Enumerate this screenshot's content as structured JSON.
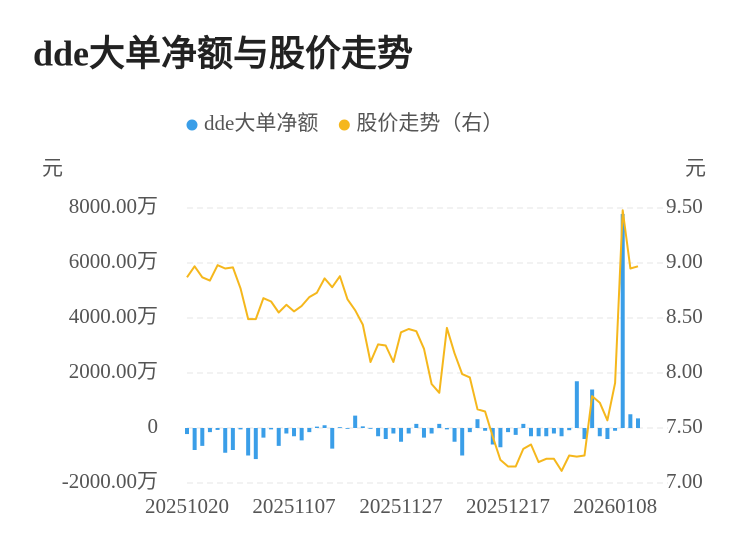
{
  "chart_data": {
    "type": "bar",
    "title": "dde大单净额与股价走势",
    "y_label": "元",
    "y2_label": "元",
    "categories": [
      "20251020",
      null,
      null,
      null,
      null,
      null,
      null,
      null,
      null,
      null,
      null,
      null,
      null,
      null,
      "20251107",
      null,
      null,
      null,
      null,
      null,
      null,
      null,
      null,
      null,
      null,
      null,
      null,
      null,
      "20251127",
      null,
      null,
      null,
      null,
      null,
      null,
      null,
      null,
      null,
      null,
      null,
      null,
      null,
      "20251217",
      null,
      null,
      null,
      null,
      null,
      null,
      null,
      null,
      null,
      null,
      null,
      null,
      null,
      "20260108",
      null,
      null,
      null
    ],
    "series": [
      {
        "name": "dde大单净额",
        "type": "bar",
        "color": "#3a9ee8",
        "values": [
          -220,
          -800,
          -650,
          -150,
          -70,
          -900,
          -800,
          -50,
          -1000,
          -1130,
          -350,
          -50,
          -650,
          -200,
          -300,
          -450,
          -150,
          50,
          100,
          -750,
          30,
          -30,
          450,
          60,
          -30,
          -300,
          -400,
          -200,
          -500,
          -200,
          150,
          -350,
          -200,
          150,
          -50,
          -500,
          -1000,
          -150,
          320,
          -100,
          -600,
          -700,
          -150,
          -250,
          150,
          -300,
          -300,
          -300,
          -200,
          -300,
          -80,
          1700,
          -400,
          1400,
          -300,
          -400,
          -100,
          7780,
          500,
          350
        ]
      },
      {
        "name": "股价走势（右）",
        "type": "line",
        "axis": "y2",
        "color": "#f5b71c",
        "values": [
          8.87,
          8.97,
          8.87,
          8.84,
          8.98,
          8.95,
          8.96,
          8.77,
          8.49,
          8.49,
          8.68,
          8.65,
          8.55,
          8.62,
          8.56,
          8.61,
          8.69,
          8.73,
          8.86,
          8.78,
          8.88,
          8.67,
          8.57,
          8.44,
          8.1,
          8.26,
          8.25,
          8.1,
          8.37,
          8.4,
          8.38,
          8.22,
          7.9,
          7.82,
          8.41,
          8.18,
          7.99,
          7.96,
          7.67,
          7.65,
          7.42,
          7.21,
          7.15,
          7.15,
          7.31,
          7.35,
          7.19,
          7.22,
          7.22,
          7.11,
          7.25,
          7.24,
          7.25,
          7.79,
          7.73,
          7.57,
          7.91,
          9.48,
          8.95,
          8.97
        ]
      }
    ],
    "ylim": [
      -2000,
      8000
    ],
    "yticks": [
      {
        "value": -2000,
        "label": "-2000.00万"
      },
      0,
      {
        "value": 2000,
        "label": "2000.00万"
      },
      {
        "value": 4000,
        "label": "4000.00万"
      },
      {
        "value": 6000,
        "label": "6000.00万"
      },
      {
        "value": 8000,
        "label": "8000.00万"
      }
    ],
    "y2lim": [
      7,
      9.5
    ],
    "y2ticks": [
      {
        "value": 7,
        "label": "7.00"
      },
      {
        "value": 7.5,
        "label": "7.50"
      },
      {
        "value": 8,
        "label": "8.00"
      },
      {
        "value": 8.5,
        "label": "8.50"
      },
      {
        "value": 9,
        "label": "9.00"
      },
      {
        "value": 9.5,
        "label": "9.50"
      }
    ],
    "grid": true,
    "legend": "top"
  }
}
